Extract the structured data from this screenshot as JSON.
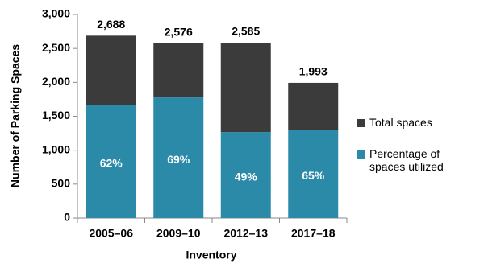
{
  "chart_data": {
    "type": "stacked-bar",
    "x_label": "Inventory",
    "y_label": "Number of Parking Spaces",
    "categories": [
      "2005–06",
      "2009–10",
      "2012–13",
      "2017–18"
    ],
    "series": [
      {
        "name": "Percentage of spaces utilized",
        "color": "#2a8aa8",
        "values": [
          1667,
          1777,
          1267,
          1295
        ]
      },
      {
        "name": "Total spaces",
        "color": "#3b3b3b",
        "values": [
          1021,
          799,
          1318,
          698
        ]
      }
    ],
    "total_values": [
      2688,
      2576,
      2585,
      1993
    ],
    "total_labels": [
      "2,688",
      "2,576",
      "2,585",
      "1,993"
    ],
    "utilization_percent": [
      62,
      69,
      49,
      65
    ],
    "utilization_labels": [
      "62%",
      "69%",
      "49%",
      "65%"
    ],
    "ylim": [
      0,
      3000
    ],
    "yticks": [
      0,
      500,
      {
        "value": 1000,
        "label": "1,000"
      },
      {
        "value": 1500,
        "label": "1,500"
      },
      {
        "value": 2000,
        "label": "2,000"
      },
      {
        "value": 2500,
        "label": "2,500"
      },
      {
        "value": 3000,
        "label": "3,000"
      }
    ],
    "legend": "right"
  }
}
